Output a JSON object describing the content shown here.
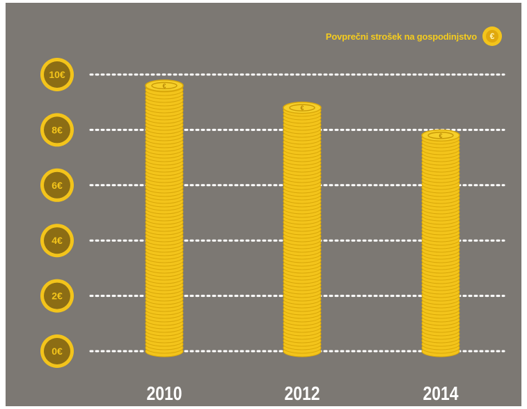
{
  "chart_data": {
    "type": "bar",
    "categories": [
      "2010",
      "2012",
      "2014"
    ],
    "series": [
      {
        "name": "Povprečni strošek na gospodinjstvo",
        "values": [
          9.6,
          8.8,
          7.8
        ]
      }
    ],
    "yticks": [
      "0€",
      "2€",
      "4€",
      "6€",
      "8€",
      "10€"
    ],
    "ylim": [
      0,
      10
    ],
    "grid": true,
    "legend_position": "top-right"
  },
  "legend": {
    "label": "Povprečni strošek na gospodinjstvo",
    "icon": "euro-coin-icon",
    "symbol": "€"
  },
  "colors": {
    "background": "#7c7873",
    "coin": "#f3c41b",
    "coin_edge": "#d9a80a",
    "grid": "#ffffff",
    "text": "#ffffff"
  }
}
